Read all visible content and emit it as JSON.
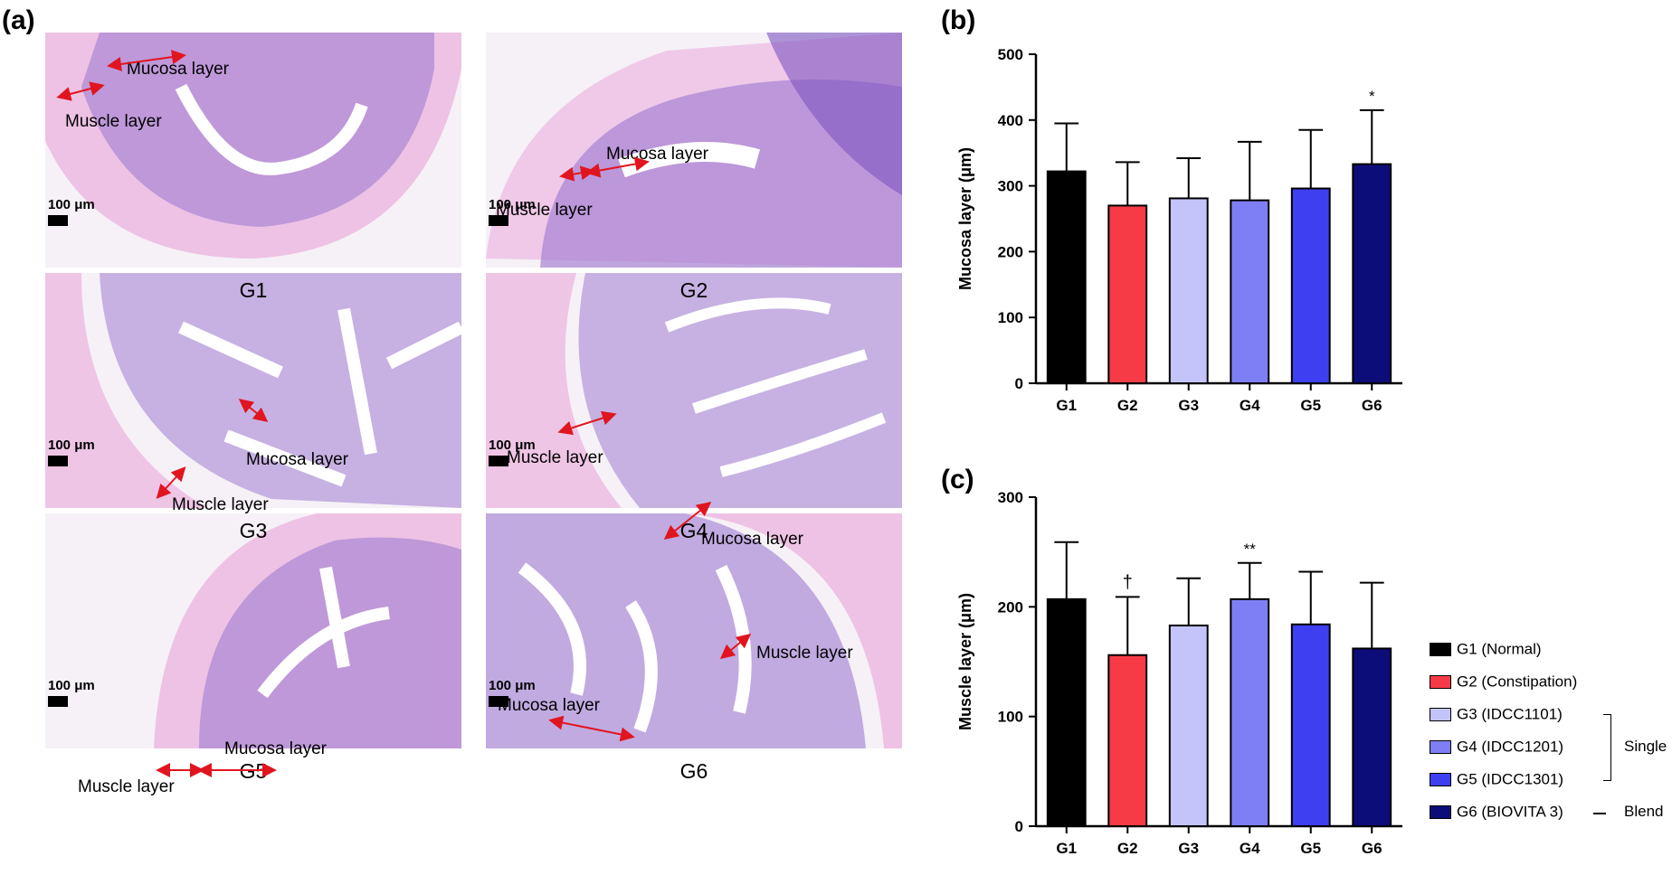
{
  "figure": {
    "panel_a_label": "(a)",
    "panel_b_label": "(b)",
    "panel_c_label": "(c)"
  },
  "micrographs": [
    {
      "group": "G1",
      "scale": "100 μm",
      "mucosa_label": "Mucosa layer",
      "muscle_label": "Muscle layer"
    },
    {
      "group": "G2",
      "scale": "100 μm",
      "mucosa_label": "Mucosa layer",
      "muscle_label": "Muscle layer"
    },
    {
      "group": "G3",
      "scale": "100 μm",
      "mucosa_label": "Mucosa layer",
      "muscle_label": "Muscle layer"
    },
    {
      "group": "G4",
      "scale": "100 μm",
      "mucosa_label": "Mucosa layer",
      "muscle_label": "Muscle layer"
    },
    {
      "group": "G5",
      "scale": "100 μm",
      "mucosa_label": "Mucosa layer",
      "muscle_label": "Muscle layer"
    },
    {
      "group": "G6",
      "scale": "100 μm",
      "mucosa_label": "Mucosa layer",
      "muscle_label": "Muscle layer"
    }
  ],
  "colors": {
    "G1": "#000000",
    "G2": "#f73b46",
    "G3": "#c4c4fb",
    "G4": "#7f7ff5",
    "G5": "#3f3ff2",
    "G6": "#0d0d7a",
    "stain_pink": "#e89ad6",
    "stain_purple": "#9f7cd1"
  },
  "chart_data": [
    {
      "type": "bar",
      "panel": "(b)",
      "categories": [
        "G1",
        "G2",
        "G3",
        "G4",
        "G5",
        "G6"
      ],
      "values": [
        322,
        270,
        281,
        278,
        296,
        333
      ],
      "error_upper": [
        395,
        336,
        342,
        367,
        385,
        415
      ],
      "significance": [
        "",
        "",
        "",
        "",
        "",
        "*"
      ],
      "ylabel": "Mucosa layer (μm)",
      "ylim": [
        0,
        500
      ],
      "yticks": [
        0,
        100,
        200,
        300,
        400,
        500
      ],
      "grid": false
    },
    {
      "type": "bar",
      "panel": "(c)",
      "categories": [
        "G1",
        "G2",
        "G3",
        "G4",
        "G5",
        "G6"
      ],
      "values": [
        207,
        156,
        183,
        207,
        184,
        162
      ],
      "error_upper": [
        259,
        209,
        226,
        240,
        232,
        222
      ],
      "significance": [
        "",
        "†",
        "",
        "**",
        "",
        ""
      ],
      "ylabel": "Muscle layer (μm)",
      "ylim": [
        0,
        300
      ],
      "yticks": [
        0,
        100,
        200,
        300
      ],
      "grid": false
    }
  ],
  "legend": {
    "items": [
      {
        "key": "G1",
        "label": "G1 (Normal)"
      },
      {
        "key": "G2",
        "label": "G2 (Constipation)"
      },
      {
        "key": "G3",
        "label": "G3 (IDCC1101)"
      },
      {
        "key": "G4",
        "label": "G4 (IDCC1201)"
      },
      {
        "key": "G5",
        "label": "G5 (IDCC1301)"
      },
      {
        "key": "G6",
        "label": "G6 (BIOVITA 3)"
      }
    ],
    "single_label": "Single",
    "blend_label": "Blend"
  }
}
